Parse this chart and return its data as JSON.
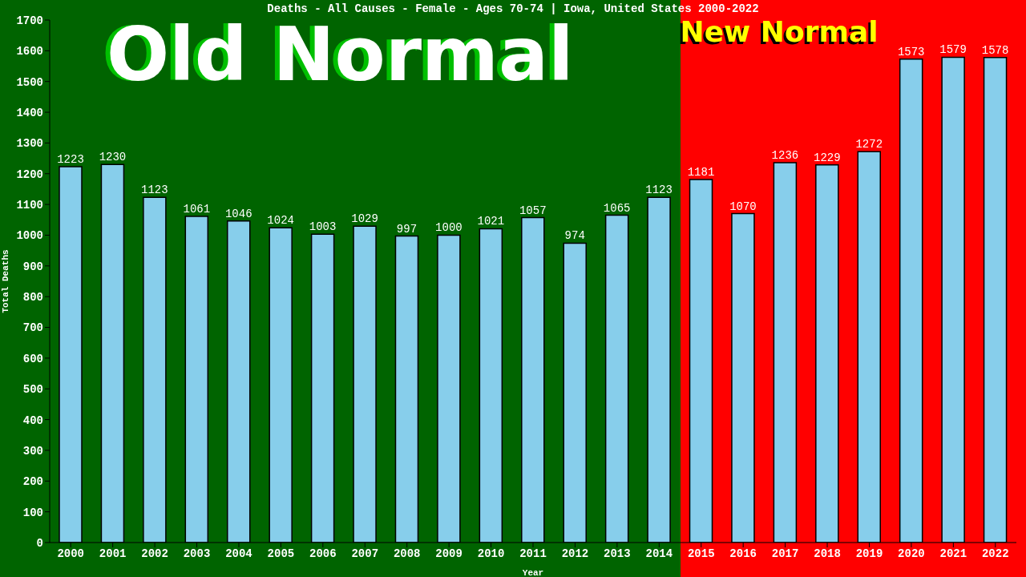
{
  "chart_data": {
    "type": "bar",
    "title": "Deaths - All Causes - Female - Ages 70-74 | Iowa, United States 2000-2022",
    "xlabel": "Year",
    "ylabel": "Total Deaths",
    "categories": [
      "2000",
      "2001",
      "2002",
      "2003",
      "2004",
      "2005",
      "2006",
      "2007",
      "2008",
      "2009",
      "2010",
      "2011",
      "2012",
      "2013",
      "2014",
      "2015",
      "2016",
      "2017",
      "2018",
      "2019",
      "2020",
      "2021",
      "2022"
    ],
    "values": [
      1223,
      1230,
      1123,
      1061,
      1046,
      1024,
      1003,
      1029,
      997,
      1000,
      1021,
      1057,
      974,
      1065,
      1123,
      1181,
      1070,
      1236,
      1229,
      1272,
      1573,
      1579,
      1578
    ],
    "color": "#87ceeb",
    "data_labels": true,
    "ylim": [
      0,
      1700
    ],
    "yticks": [
      0,
      100,
      200,
      300,
      400,
      500,
      600,
      700,
      800,
      900,
      1000,
      1100,
      1200,
      1300,
      1400,
      1500,
      1600,
      1700
    ],
    "grid": false,
    "legend": false,
    "bands": [
      {
        "axis": "x",
        "from": "2000",
        "to": "2014",
        "label": "Old Normal",
        "color": "#006400"
      },
      {
        "axis": "x",
        "from": "2015",
        "to": "2022",
        "label": "New Normal",
        "color": "#ff0000"
      }
    ]
  }
}
